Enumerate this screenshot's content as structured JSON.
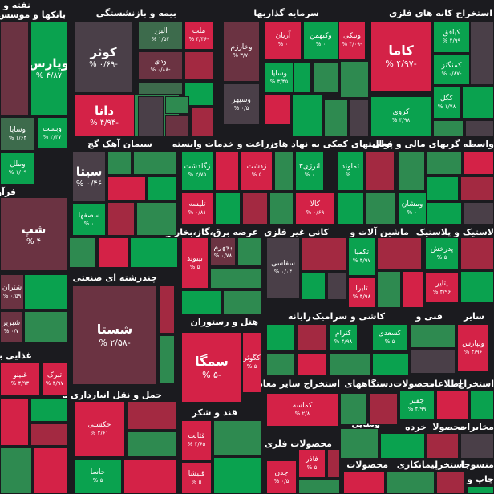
{
  "chart_data": {
    "type": "heatmap",
    "colors": {
      "up_strong": "#0aa24f",
      "up_mid": "#2e8a50",
      "up_weak": "#3d6b4c",
      "neutral": "#4a3f48",
      "down_weak": "#6b3342",
      "down_mid": "#a32941",
      "down_strong": "#d42247",
      "background": "#1b1b1f"
    },
    "sectors": [
      {
        "name": "نفته و موسا",
        "display": "نفته و موس"
      },
      {
        "name": "بانکها و موسسات",
        "display": "بانکها و موسس"
      },
      {
        "name": "بیمه و بازنشستگی",
        "display": "بیمه و بازنشستگی"
      },
      {
        "name": "سرمایه گذاریها",
        "display": "سرمایه گذاریها"
      },
      {
        "name": "استخراج کانه های فلزی",
        "display": "استخراج کانه های فلزی"
      },
      {
        "name": "واسطه گریهای مالی و پولی",
        "display": "واسطه گریهای مالی و پولی"
      },
      {
        "name": "فعالیتهای کمکی به نهاد های",
        "display": "فعالیتهای کمکی به نهاد های"
      },
      {
        "name": "زراعت و خدمات وابسته",
        "display": "زراعت و خدمات وابسته"
      },
      {
        "name": "سیمان آهک گچ",
        "display": "سیمان آهک گچ"
      },
      {
        "name": "فرآورده های نفتی",
        "display": "فرآورده ها"
      },
      {
        "name": "عرضه برق،گاز،بخار و",
        "display": "عرضه برق،گاز،بخار و"
      },
      {
        "name": "کانی غیر فلزی",
        "display": "کانی غیر فلزی"
      },
      {
        "name": "ماشین آلات و",
        "display": "ماشین آلات و"
      },
      {
        "name": "لاستیک و پلاستیک",
        "display": "لاستیک و پلاستیک"
      },
      {
        "name": "چندرشته ای صنعتی",
        "display": "چندرشته ای صنعتی"
      },
      {
        "name": "هتل و رستوران",
        "display": "هتل و رستوران"
      },
      {
        "name": "رایانه",
        "display": "رایانه"
      },
      {
        "name": "کاشی و سرامیک",
        "display": "کاشی و سرامیک"
      },
      {
        "name": "فنی و",
        "display": "فنی و"
      },
      {
        "name": "سایر",
        "display": "سایر"
      },
      {
        "name": "غذایی بجز",
        "display": "غذایی بجز"
      },
      {
        "name": "حمل و نقل انبارداری و",
        "display": "حمل و نقل انبارداری و"
      },
      {
        "name": "استخراج سایر معادن",
        "display": "استخراج سایر معادن"
      },
      {
        "name": "دستگاههای",
        "display": "دستگاههای"
      },
      {
        "name": "محصولات",
        "display": "محصولات"
      },
      {
        "name": "اطلاعات",
        "display": "اطلاعات"
      },
      {
        "name": "استخراج",
        "display": "استخراج"
      },
      {
        "name": "قند و شکر",
        "display": "قند و شکر"
      },
      {
        "name": "وسایل",
        "display": "وسایل"
      },
      {
        "name": "خرده",
        "display": "خرده"
      },
      {
        "name": "محصولا",
        "display": "محصولا"
      },
      {
        "name": "مخابرات",
        "display": "مخابرات"
      },
      {
        "name": "محصولات فلزی",
        "display": "محصولات فلزی"
      },
      {
        "name": "محصولات",
        "display": "محصولات"
      },
      {
        "name": "پیمانکاری",
        "display": "پیمانکاری"
      },
      {
        "name": "استخرا",
        "display": "استخرا"
      },
      {
        "name": "منسوجا",
        "display": "منسوجا"
      },
      {
        "name": "چاپ",
        "display": "چاپ و"
      }
    ],
    "tiles": [
      {
        "symbol": "وپارس",
        "change": "۴/۸۷ %",
        "sector": "بانکها و موسسات",
        "color": "up_strong"
      },
      {
        "symbol": "وبست",
        "change": "۲/۴۷ %",
        "sector": "بانکها و موسسات",
        "color": "up_strong"
      },
      {
        "symbol": "وساپا",
        "change": "۱/۶۴ %",
        "sector": "بانکها و موسسات",
        "color": "up_weak"
      },
      {
        "symbol": "وملل",
        "change": "۱/۰۹ %",
        "sector": "بانکها و موسسات",
        "color": "up_strong"
      },
      {
        "symbol": "کوثر",
        "change": "-۰/۶۹ %",
        "sector": "بیمه و بازنشستگی",
        "color": "neutral"
      },
      {
        "symbol": "البرز",
        "change": "۱/۵۴ %",
        "sector": "بیمه و بازنشستگی",
        "color": "up_weak"
      },
      {
        "symbol": "ملت",
        "change": "-۴/۴۶ %",
        "sector": "بیمه و بازنشستگی",
        "color": "down_strong"
      },
      {
        "symbol": "ودی",
        "change": "-۰/۸۸ %",
        "sector": "بیمه و بازنشستگی",
        "color": "down_weak"
      },
      {
        "symbol": "دانا",
        "change": "-۴/۹۴ %",
        "sector": "بیمه و بازنشستگی",
        "color": "down_strong"
      },
      {
        "symbol": "وخارزم",
        "change": "-۳/۷ %",
        "sector": "سرمایه گذاریها",
        "color": "down_weak"
      },
      {
        "symbol": "آریان",
        "change": "۰ %",
        "sector": "سرمایه گذاریها",
        "color": "down_strong"
      },
      {
        "symbol": "وکبهمن",
        "change": "۰ %",
        "sector": "سرمایه گذاریها",
        "color": "up_strong"
      },
      {
        "symbol": "وسپهر",
        "change": "۰/۵ %",
        "sector": "سرمایه گذاریها",
        "color": "neutral"
      },
      {
        "symbol": "وسایا",
        "change": "۳/۴۵ %",
        "sector": "سرمایه گذاریها",
        "color": "up_strong"
      },
      {
        "symbol": "ونیکی",
        "change": "-۴/۰۹ %",
        "sector": "سرمایه گذاریها",
        "color": "down_strong"
      },
      {
        "symbol": "کاما",
        "change": "-۴/۹۷ %",
        "sector": "استخراج کانه های فلزی",
        "color": "down_strong"
      },
      {
        "symbol": "کروی",
        "change": "۴/۹۸ %",
        "sector": "استخراج کانه های فلزی",
        "color": "up_strong"
      },
      {
        "symbol": "کیافق",
        "change": "۴/۹۹ %",
        "sector": "استخراج کانه های فلزی",
        "color": "up_strong"
      },
      {
        "symbol": "کمنگنز",
        "change": "-۰/۸۷ %",
        "sector": "استخراج کانه های فلزی",
        "color": "up_strong"
      },
      {
        "symbol": "کگل",
        "change": "۱/۷۸ %",
        "sector": "استخراج کانه های فلزی",
        "color": "up_strong"
      },
      {
        "symbol": "سیتا",
        "change": "۰/۴۶ %",
        "sector": "سیمان آهک گچ",
        "color": "neutral"
      },
      {
        "symbol": "سصفها",
        "change": "۰ %",
        "sector": "سیمان آهک گچ",
        "color": "up_strong"
      },
      {
        "symbol": "زگلدشت",
        "change": "۲/۷۵ %",
        "sector": "زراعت و خدمات وابسته",
        "color": "up_strong"
      },
      {
        "symbol": "زدشت",
        "change": "۵ %",
        "sector": "زراعت و خدمات وابسته",
        "color": "down_strong"
      },
      {
        "symbol": "تلیسه",
        "change": "۰/۸۱ %",
        "sector": "زراعت و خدمات وابسته",
        "color": "down_strong"
      },
      {
        "symbol": "انرژی۳",
        "change": "۰ %",
        "sector": "فعالیتهای کمکی به نهاد های",
        "color": "up_strong"
      },
      {
        "symbol": "تماوند",
        "change": "۰ %",
        "sector": "فعالیتهای کمکی به نهاد های",
        "color": "up_strong"
      },
      {
        "symbol": "کالا",
        "change": "۰/۶۹ %",
        "sector": "فعالیتهای کمکی به نهاد های",
        "color": "down_strong"
      },
      {
        "symbol": "ومشان",
        "change": "۰ %",
        "sector": "واسطه گریهای مالی و پولی",
        "color": "up_strong"
      },
      {
        "symbol": "شپ",
        "change": "۴ %",
        "sector": "فرآورده های نفتی",
        "color": "down_weak"
      },
      {
        "symbol": "بجهرم",
        "change": "۰/۷۸ %",
        "sector": "عرضه برق،گاز،بخار و",
        "color": "down_weak"
      },
      {
        "symbol": "بپیوند",
        "change": "۵ %",
        "sector": "عرضه برق،گاز،بخار و",
        "color": "down_strong"
      },
      {
        "symbol": "سفاسی",
        "change": "۰/۰۴ %",
        "sector": "کانی غیر فلزی",
        "color": "neutral"
      },
      {
        "symbol": "تکمبا",
        "change": "۴/۹۷ %",
        "sector": "ماشین آلات و",
        "color": "up_strong"
      },
      {
        "symbol": "تایرا",
        "change": "۴/۹۸ %",
        "sector": "ماشین آلات و",
        "color": "down_strong"
      },
      {
        "symbol": "پدرخش",
        "change": "۵ %",
        "sector": "لاستیک و پلاستیک",
        "color": "up_strong"
      },
      {
        "symbol": "پتایر",
        "change": "۴/۹۶ %",
        "sector": "لاستیک و پلاستیک",
        "color": "down_strong"
      },
      {
        "symbol": "شستا",
        "change": "-۲/۵۸ %",
        "sector": "چندرشته ای صنعتی",
        "color": "down_weak"
      },
      {
        "symbol": "شتران",
        "change": "۰/۵۹ %",
        "sector": "فرآورده های نفتی",
        "color": "down_weak"
      },
      {
        "symbol": "شبریز",
        "change": "۰/۷ %",
        "sector": "فرآورده های نفتی",
        "color": "down_weak"
      },
      {
        "symbol": "سمگا",
        "change": "-۵ %",
        "sector": "هتل و رستوران",
        "color": "down_strong"
      },
      {
        "symbol": "کگوثر",
        "change": "۵ %",
        "sector": "هتل و رستوران",
        "color": "down_strong"
      },
      {
        "symbol": "کترام",
        "change": "۴/۹۸ %",
        "sector": "کاشی و سرامیک",
        "color": "up_strong"
      },
      {
        "symbol": "کسعدی",
        "change": "۵ %",
        "sector": "کاشی و سرامیک",
        "color": "up_strong"
      },
      {
        "symbol": "ولپارس",
        "change": "۴/۹۶ %",
        "sector": "سایر",
        "color": "down_strong"
      },
      {
        "symbol": "غبینو",
        "change": "۴/۹۳ %",
        "sector": "غذایی بجز",
        "color": "down_strong"
      },
      {
        "symbol": "تبرک",
        "change": "۴/۹۷ %",
        "sector": "غذایی بجز",
        "color": "down_strong"
      },
      {
        "symbol": "کماسه",
        "change": "۲/۸ %",
        "sector": "استخراج سایر معادن",
        "color": "down_strong"
      },
      {
        "symbol": "چفیر",
        "change": "۴/۹۹ %",
        "sector": "محصولات",
        "color": "up_strong"
      },
      {
        "symbol": "حکشتی",
        "change": "۲/۶۱ %",
        "sector": "حمل و نقل انبارداری و",
        "color": "down_strong"
      },
      {
        "symbol": "حاسا",
        "change": "۵ %",
        "sector": "حمل و نقل انبارداری و",
        "color": "up_strong"
      },
      {
        "symbol": "قثابت",
        "change": "۲/۶۵ %",
        "sector": "قند و شکر",
        "color": "down_strong"
      },
      {
        "symbol": "قنیشا",
        "change": "۵ %",
        "sector": "قند و شکر",
        "color": "down_strong"
      },
      {
        "symbol": "چدن",
        "change": "۰/۵ %",
        "sector": "محصولات فلزی",
        "color": "down_strong"
      },
      {
        "symbol": "فاذر",
        "change": "۵ %",
        "sector": "محصولات فلزی",
        "color": "down_strong"
      }
    ]
  }
}
